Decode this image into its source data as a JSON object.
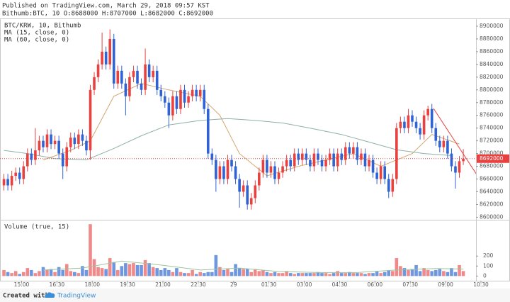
{
  "header": {
    "line1": "Published on TradingView.com, March 29, 2018 09:57 KST",
    "line2": "Bithumb:BTC, 10 O:8688000 H:8707000 L:8682000 C:8692000"
  },
  "footer": {
    "created": "Created with",
    "brand": "TradingView"
  },
  "chart_data": [
    {
      "type": "candlestick",
      "title": "BTC/KRW, 10, Bithumb",
      "up_color": "#e8413f",
      "down_color": "#2f62d4",
      "open": [
        8650000,
        8660000,
        8650000,
        8665000,
        8670000,
        8660000,
        8680000,
        8700000,
        8690000,
        8705000,
        8720000,
        8710000,
        8730000,
        8715000,
        8720000,
        8700000,
        8680000,
        8710000,
        8725000,
        8715000,
        8730000,
        8720000,
        8705000,
        8800000,
        8820000,
        8840000,
        8860000,
        8840000,
        8880000,
        8810000,
        8830000,
        8810000,
        8790000,
        8820000,
        8830000,
        8810000,
        8800000,
        8840000,
        8820000,
        8830000,
        8800000,
        8790000,
        8780000,
        8760000,
        8790000,
        8770000,
        8800000,
        8780000,
        8790000,
        8800000,
        8790000,
        8800000,
        8770000,
        8700000,
        8690000,
        8660000,
        8680000,
        8660000,
        8690000,
        8680000,
        8660000,
        8640000,
        8650000,
        8620000,
        8630000,
        8650000,
        8670000,
        8690000,
        8670000,
        8680000,
        8660000,
        8670000,
        8680000,
        8690000,
        8680000,
        8700000,
        8690000,
        8700000,
        8690000,
        8680000,
        8700000,
        8690000,
        8680000,
        8690000,
        8700000,
        8680000,
        8700000,
        8690000,
        8710000,
        8700000,
        8710000,
        8690000,
        8700000,
        8680000,
        8690000,
        8670000,
        8660000,
        8680000,
        8660000,
        8640000,
        8660000,
        8740000,
        8750000,
        8740000,
        8760000,
        8750000,
        8740000,
        8730000,
        8760000,
        8770000,
        8740000,
        8720000,
        8710000,
        8720000,
        8700000,
        8680000,
        8670000,
        8688000
      ],
      "high": [
        8668000,
        8668000,
        8673000,
        8678000,
        8678000,
        8688000,
        8708000,
        8708000,
        8740000,
        8728000,
        8728000,
        8738000,
        8738000,
        8728000,
        8728000,
        8708000,
        8718000,
        8733000,
        8733000,
        8738000,
        8738000,
        8728000,
        8808000,
        8828000,
        8848000,
        8890000,
        8868000,
        8895000,
        8888000,
        8838000,
        8838000,
        8818000,
        8828000,
        8838000,
        8838000,
        8818000,
        8865000,
        8848000,
        8838000,
        8838000,
        8808000,
        8798000,
        8788000,
        8798000,
        8798000,
        8808000,
        8808000,
        8798000,
        8808000,
        8808000,
        8808000,
        8808000,
        8778000,
        8708000,
        8698000,
        8688000,
        8688000,
        8698000,
        8698000,
        8688000,
        8668000,
        8658000,
        8658000,
        8638000,
        8658000,
        8678000,
        8698000,
        8698000,
        8688000,
        8688000,
        8678000,
        8688000,
        8698000,
        8698000,
        8708000,
        8708000,
        8708000,
        8708000,
        8698000,
        8708000,
        8708000,
        8698000,
        8698000,
        8708000,
        8708000,
        8708000,
        8708000,
        8718000,
        8718000,
        8718000,
        8718000,
        8708000,
        8708000,
        8698000,
        8698000,
        8678000,
        8688000,
        8688000,
        8668000,
        8668000,
        8748000,
        8758000,
        8758000,
        8770000,
        8768000,
        8758000,
        8748000,
        8768000,
        8775000,
        8778000,
        8748000,
        8728000,
        8728000,
        8728000,
        8708000,
        8688000,
        8696000,
        8707000
      ],
      "low": [
        8642000,
        8642000,
        8642000,
        8657000,
        8652000,
        8652000,
        8672000,
        8682000,
        8682000,
        8697000,
        8702000,
        8702000,
        8707000,
        8707000,
        8692000,
        8660000,
        8672000,
        8702000,
        8707000,
        8707000,
        8712000,
        8697000,
        8690000,
        8792000,
        8812000,
        8832000,
        8832000,
        8832000,
        8802000,
        8802000,
        8802000,
        8760000,
        8782000,
        8812000,
        8802000,
        8792000,
        8792000,
        8812000,
        8812000,
        8792000,
        8782000,
        8772000,
        8740000,
        8752000,
        8762000,
        8762000,
        8772000,
        8772000,
        8782000,
        8782000,
        8782000,
        8762000,
        8692000,
        8682000,
        8640000,
        8652000,
        8652000,
        8652000,
        8672000,
        8652000,
        8615000,
        8632000,
        8612000,
        8612000,
        8622000,
        8642000,
        8662000,
        8662000,
        8662000,
        8652000,
        8652000,
        8662000,
        8672000,
        8672000,
        8672000,
        8682000,
        8682000,
        8682000,
        8672000,
        8672000,
        8682000,
        8672000,
        8672000,
        8682000,
        8672000,
        8672000,
        8682000,
        8682000,
        8692000,
        8692000,
        8682000,
        8682000,
        8672000,
        8672000,
        8662000,
        8652000,
        8652000,
        8652000,
        8630000,
        8632000,
        8652000,
        8732000,
        8732000,
        8732000,
        8742000,
        8732000,
        8722000,
        8722000,
        8752000,
        8732000,
        8712000,
        8702000,
        8702000,
        8692000,
        8672000,
        8645000,
        8662000,
        8682000
      ],
      "close": [
        8660000,
        8650000,
        8665000,
        8670000,
        8660000,
        8680000,
        8700000,
        8690000,
        8705000,
        8720000,
        8710000,
        8730000,
        8715000,
        8720000,
        8700000,
        8680000,
        8710000,
        8725000,
        8715000,
        8730000,
        8720000,
        8705000,
        8800000,
        8820000,
        8840000,
        8860000,
        8840000,
        8880000,
        8810000,
        8830000,
        8810000,
        8790000,
        8820000,
        8830000,
        8810000,
        8800000,
        8840000,
        8820000,
        8830000,
        8800000,
        8790000,
        8780000,
        8760000,
        8790000,
        8770000,
        8800000,
        8780000,
        8790000,
        8800000,
        8790000,
        8800000,
        8770000,
        8700000,
        8690000,
        8660000,
        8680000,
        8660000,
        8690000,
        8680000,
        8660000,
        8640000,
        8650000,
        8620000,
        8630000,
        8650000,
        8670000,
        8690000,
        8670000,
        8680000,
        8660000,
        8670000,
        8680000,
        8690000,
        8680000,
        8700000,
        8690000,
        8700000,
        8690000,
        8680000,
        8700000,
        8690000,
        8680000,
        8690000,
        8700000,
        8680000,
        8700000,
        8690000,
        8710000,
        8700000,
        8710000,
        8690000,
        8700000,
        8680000,
        8690000,
        8670000,
        8660000,
        8680000,
        8660000,
        8640000,
        8660000,
        8740000,
        8750000,
        8740000,
        8760000,
        8750000,
        8740000,
        8730000,
        8760000,
        8770000,
        8740000,
        8720000,
        8710000,
        8720000,
        8700000,
        8680000,
        8670000,
        8688000,
        8692000
      ],
      "series": [
        {
          "name": "MA (15, close, 0)",
          "color": "#d4a56e",
          "x": [
            10,
            17,
            22,
            28,
            35,
            42,
            50,
            55,
            60,
            67,
            75,
            82,
            89,
            96,
            104,
            109,
            116
          ],
          "values": [
            8690000,
            8705000,
            8720000,
            8790000,
            8810000,
            8800000,
            8790000,
            8760000,
            8700000,
            8665000,
            8680000,
            8690000,
            8700000,
            8680000,
            8700000,
            8730000,
            8715000
          ]
        },
        {
          "name": "MA (60, close, 0)",
          "color": "#8fb0a8",
          "x": [
            0,
            6,
            13,
            21,
            28,
            35,
            42,
            50,
            57,
            64,
            71,
            78,
            86,
            93,
            100,
            107,
            114
          ],
          "values": [
            8705000,
            8700000,
            8692000,
            8690000,
            8708000,
            8728000,
            8745000,
            8752000,
            8755000,
            8752000,
            8748000,
            8740000,
            8730000,
            8718000,
            8706000,
            8700000,
            8697000
          ]
        }
      ],
      "xlim": [
        -1,
        121.5
      ],
      "xticks": [
        {
          "value": 4.5,
          "label": "15:00"
        },
        {
          "value": 13.5,
          "label": "16:30"
        },
        {
          "value": 22.5,
          "label": "18:00"
        },
        {
          "value": 31.5,
          "label": "19:30"
        },
        {
          "value": 40.5,
          "label": "21:00"
        },
        {
          "value": 49.5,
          "label": "22:30"
        },
        {
          "value": 58.5,
          "label": "29"
        },
        {
          "value": 67.5,
          "label": "01:30"
        },
        {
          "value": 76.5,
          "label": "03:00"
        },
        {
          "value": 85.5,
          "label": "04:30"
        },
        {
          "value": 94.5,
          "label": "06:00"
        },
        {
          "value": 103.5,
          "label": "07:30"
        },
        {
          "value": 112.5,
          "label": "09:00"
        },
        {
          "value": 121.5,
          "label": "10:30"
        }
      ],
      "ylim": [
        8596000,
        8910000
      ],
      "yticks": [
        8600000,
        8620000,
        8640000,
        8660000,
        8680000,
        8700000,
        8720000,
        8740000,
        8760000,
        8780000,
        8800000,
        8820000,
        8840000,
        8860000,
        8880000,
        8900000
      ],
      "grid": false
    },
    {
      "type": "volume",
      "title": "Volume (true, 15)",
      "up_color": "#f08a8a",
      "down_color": "#6f97e0",
      "values": [
        60,
        40,
        30,
        50,
        20,
        40,
        80,
        60,
        30,
        50,
        90,
        60,
        70,
        40,
        90,
        60,
        120,
        50,
        40,
        30,
        100,
        60,
        520,
        170,
        90,
        80,
        70,
        180,
        140,
        60,
        100,
        130,
        120,
        130,
        110,
        110,
        160,
        130,
        90,
        80,
        60,
        80,
        60,
        40,
        80,
        40,
        30,
        30,
        60,
        20,
        40,
        30,
        40,
        40,
        210,
        90,
        60,
        70,
        40,
        120,
        80,
        70,
        70,
        40,
        70,
        50,
        60,
        40,
        30,
        40,
        30,
        30,
        50,
        30,
        20,
        30,
        30,
        30,
        30,
        30,
        40,
        30,
        30,
        20,
        30,
        50,
        30,
        30,
        40,
        30,
        30,
        30,
        20,
        30,
        30,
        50,
        30,
        40,
        60,
        50,
        180,
        100,
        80,
        60,
        70,
        110,
        50,
        80,
        60,
        50,
        60,
        70,
        50,
        40,
        80,
        40,
        110,
        50
      ],
      "ma": {
        "color": "#9cc49c",
        "x": [
          10,
          20,
          30,
          40,
          50,
          60,
          70,
          80,
          90,
          100,
          110,
          117
        ],
        "values": [
          60,
          80,
          150,
          110,
          60,
          80,
          45,
          35,
          35,
          60,
          75,
          70
        ]
      },
      "ylim": [
        -40,
        550
      ],
      "yticks": [
        0,
        100,
        200
      ]
    }
  ]
}
